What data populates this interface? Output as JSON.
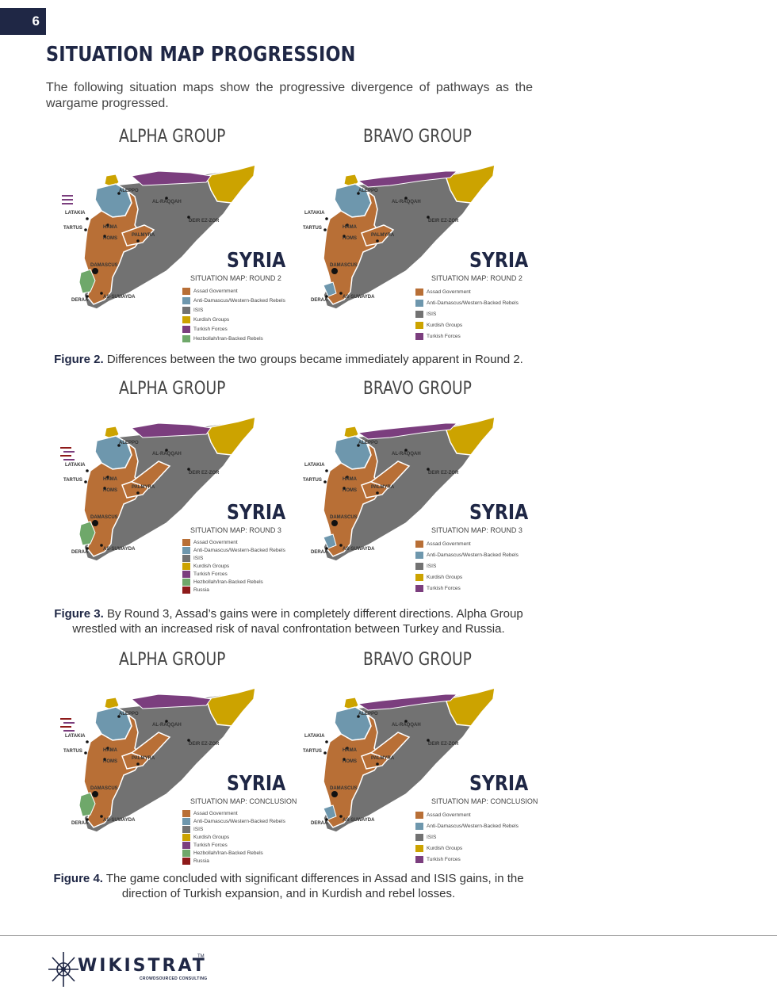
{
  "page_number": "6",
  "heading": "SITUATION MAP PROGRESSION",
  "intro": "The following situation maps show the progressive divergence of pathways as the wargame progressed.",
  "colors": {
    "assad": "#b86f36",
    "rebels": "#6e97ad",
    "isis": "#727272",
    "kurdish": "#cca300",
    "turkish": "#7b3e7e",
    "hezbollah": "#6fa86a",
    "russia": "#8e1a1a",
    "navy": "#1f2745"
  },
  "cities": {
    "aleppo": "ALEPPO",
    "raqqah": "AL-RAQQAH",
    "latakia": "LATAKIA",
    "tartus": "TARTUS",
    "hama": "HAMA",
    "homs": "HOMS",
    "palmyra": "PALMYRA",
    "deir": "DEIR EZ-ZOR",
    "damascus": "DAMASCUS",
    "deraa": "DERAA",
    "suwayda": "AS-SUWAYDA"
  },
  "syria_label": "SYRIA",
  "legend_labels": {
    "assad": "Assad Government",
    "rebels": "Anti-Damascus/Western-Backed Rebels",
    "isis": "ISIS",
    "kurdish": "Kurdish Groups",
    "turkish": "Turkish Forces",
    "hezbollah": "Hezbollah/Iran-Backed Rebels",
    "russia": "Russia"
  },
  "sections": [
    {
      "alpha_title": "ALPHA GROUP",
      "bravo_title": "BRAVO GROUP",
      "alpha_subtitle": "SITUATION MAP: ROUND 2",
      "bravo_subtitle": "SITUATION MAP: ROUND 2",
      "caption_bold": "Figure 2.",
      "caption_text": " Differences between the two groups became immediately apparent in Round 2."
    },
    {
      "alpha_title": "ALPHA GROUP",
      "bravo_title": "BRAVO GROUP",
      "alpha_subtitle": "SITUATION MAP: ROUND 3",
      "bravo_subtitle": "SITUATION MAP: ROUND 3",
      "caption_bold": "Figure 3.",
      "caption_text": " By Round 3, Assad’s gains were in completely different directions. Alpha Group wrestled with an increased risk of naval confrontation between Turkey and Russia."
    },
    {
      "alpha_title": "ALPHA GROUP",
      "bravo_title": "BRAVO GROUP",
      "alpha_subtitle": "SITUATION MAP: CONCLUSION",
      "bravo_subtitle": "SITUATION MAP: CONCLUSION",
      "caption_bold": "Figure 4.",
      "caption_text": " The game concluded with significant differences in Assad and ISIS gains, in the direction of Turkish expansion, and in Kurdish and rebel losses."
    }
  ],
  "footer": {
    "logo_word": "WIKISTRAT",
    "logo_sub": "CROWDSOURCED CONSULTING",
    "logo_tm": "TM"
  }
}
